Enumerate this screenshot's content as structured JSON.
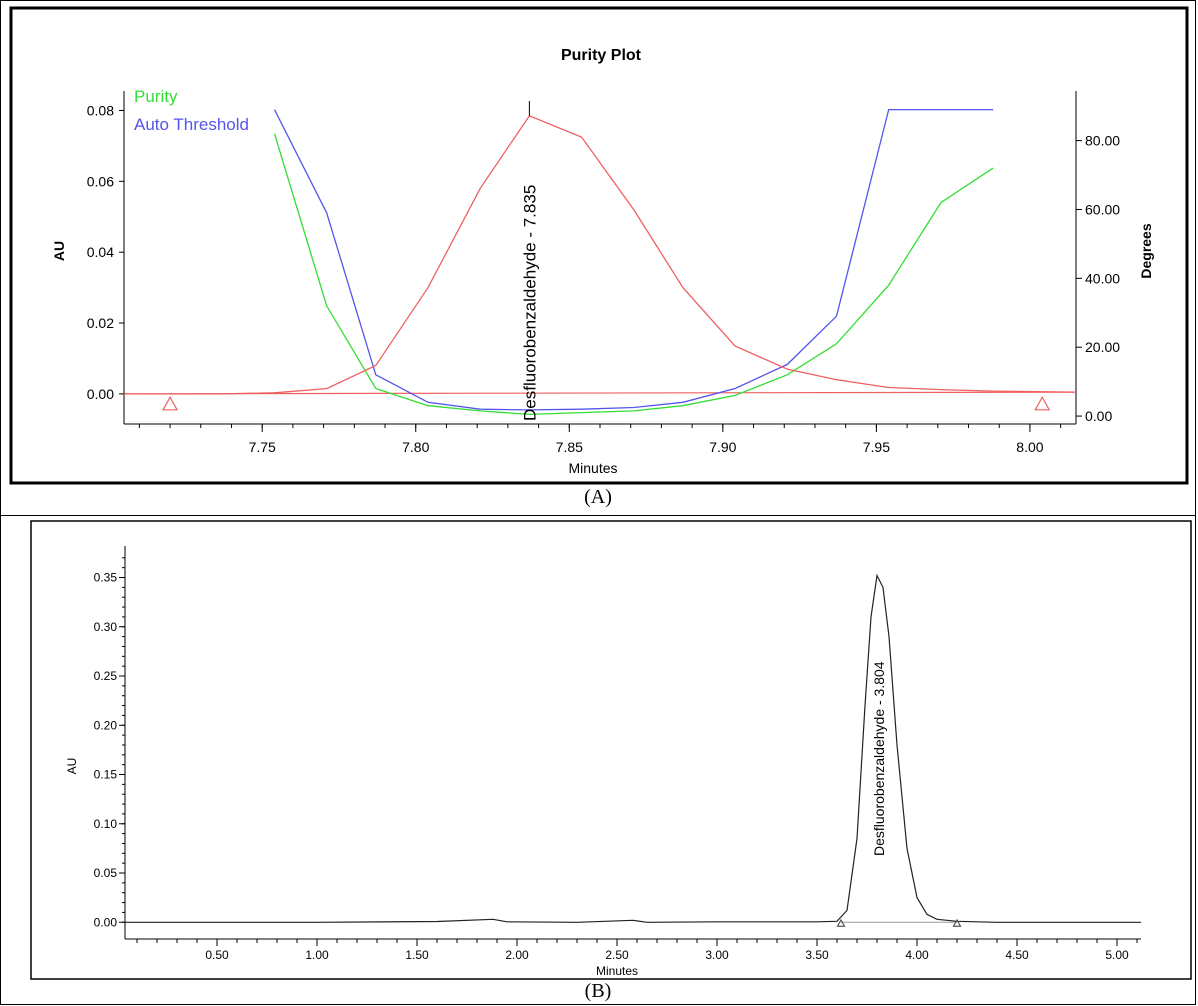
{
  "panels": {
    "a": {
      "caption": "(A)"
    },
    "b": {
      "caption": "(B)"
    }
  },
  "chart_data": [
    {
      "type": "line",
      "title": "Purity Plot",
      "xlabel": "Minutes",
      "ylabel": "AU",
      "y2label": "Degrees",
      "xlim": [
        7.705,
        8.015
      ],
      "ylim": [
        -0.0085,
        0.0855
      ],
      "y2lim": [
        -2.3,
        94.4
      ],
      "xticks": [
        "7.75",
        "7.80",
        "7.85",
        "7.90",
        "7.95",
        "8.00"
      ],
      "yticks": [
        "0.00",
        "0.02",
        "0.04",
        "0.06",
        "0.08"
      ],
      "y2ticks": [
        "0.00",
        "20.00",
        "40.00",
        "60.00",
        "80.00"
      ],
      "legend": {
        "position": "top-left",
        "entries": [
          "Purity",
          "Auto Threshold"
        ]
      },
      "colors": {
        "purity": "#33dd33",
        "auto_threshold": "#5555ee",
        "chromatogram": "#ee6060"
      },
      "peak_label": "Desfluorobenzaldehyde - 7.835",
      "peak_x": 7.837,
      "series": [
        {
          "name": "Purity",
          "axis": "Degrees",
          "x": [
            7.754,
            7.771,
            7.787,
            7.804,
            7.821,
            7.837,
            7.854,
            7.871,
            7.887,
            7.904,
            7.921,
            7.937,
            7.954,
            7.971,
            7.988
          ],
          "values": [
            82.0,
            32.0,
            8.0,
            3.0,
            1.5,
            0.5,
            1.0,
            1.5,
            3.0,
            6.0,
            12.0,
            21.0,
            38.0,
            62.0,
            72.0
          ]
        },
        {
          "name": "Auto Threshold",
          "axis": "Degrees",
          "x": [
            7.754,
            7.771,
            7.787,
            7.804,
            7.821,
            7.837,
            7.854,
            7.871,
            7.887,
            7.904,
            7.921,
            7.937,
            7.954,
            7.971,
            7.988
          ],
          "values": [
            89.0,
            59.0,
            12.0,
            4.0,
            2.0,
            1.8,
            2.0,
            2.5,
            4.0,
            8.0,
            15.0,
            29.0,
            89.0,
            89.0,
            89.0
          ]
        },
        {
          "name": "",
          "axis": "AU",
          "x": [
            7.705,
            7.737,
            7.754,
            7.771,
            7.787,
            7.804,
            7.821,
            7.837,
            7.854,
            7.871,
            7.887,
            7.904,
            7.921,
            7.937,
            7.954,
            7.971,
            7.988,
            8.015
          ],
          "values": [
            0.0,
            0.0,
            0.0003,
            0.0015,
            0.008,
            0.03,
            0.058,
            0.0785,
            0.0725,
            0.052,
            0.03,
            0.0135,
            0.007,
            0.004,
            0.0018,
            0.0012,
            0.0008,
            0.0005
          ]
        }
      ],
      "baseline": {
        "x": [
          7.72,
          8.004
        ],
        "values": [
          -0.0005,
          0.0008
        ]
      },
      "integration_markers_x": [
        7.72,
        8.004
      ]
    },
    {
      "type": "line",
      "title": "",
      "xlabel": "Minutes",
      "ylabel": "AU",
      "xlim": [
        0.04,
        5.12
      ],
      "ylim": [
        -0.017,
        0.382
      ],
      "xticks": [
        "0.50",
        "1.00",
        "1.50",
        "2.00",
        "2.50",
        "3.00",
        "3.50",
        "4.00",
        "4.50",
        "5.00"
      ],
      "yticks": [
        "0.00",
        "0.05",
        "0.10",
        "0.15",
        "0.20",
        "0.25",
        "0.30",
        "0.35"
      ],
      "peak_label": "Desfluorobenzaldehyde - 3.804",
      "peak_x": 3.804,
      "series": [
        {
          "name": "",
          "x": [
            0.04,
            1.0,
            1.6,
            1.88,
            1.95,
            2.3,
            2.58,
            2.65,
            3.0,
            3.5,
            3.6,
            3.65,
            3.7,
            3.74,
            3.77,
            3.8,
            3.83,
            3.86,
            3.9,
            3.95,
            4.0,
            4.05,
            4.1,
            4.2,
            4.4,
            5.12
          ],
          "values": [
            0.0,
            0.0,
            0.0008,
            0.003,
            0.0005,
            0.0,
            0.002,
            0.0,
            0.0005,
            0.0005,
            0.001,
            0.012,
            0.085,
            0.22,
            0.31,
            0.352,
            0.34,
            0.29,
            0.18,
            0.075,
            0.025,
            0.008,
            0.003,
            0.001,
            0.0,
            0.0
          ]
        }
      ],
      "baseline": {
        "x": [
          3.62,
          4.2
        ],
        "values": [
          0.0,
          0.0
        ]
      },
      "integration_markers_x": [
        3.62,
        4.2
      ]
    }
  ]
}
